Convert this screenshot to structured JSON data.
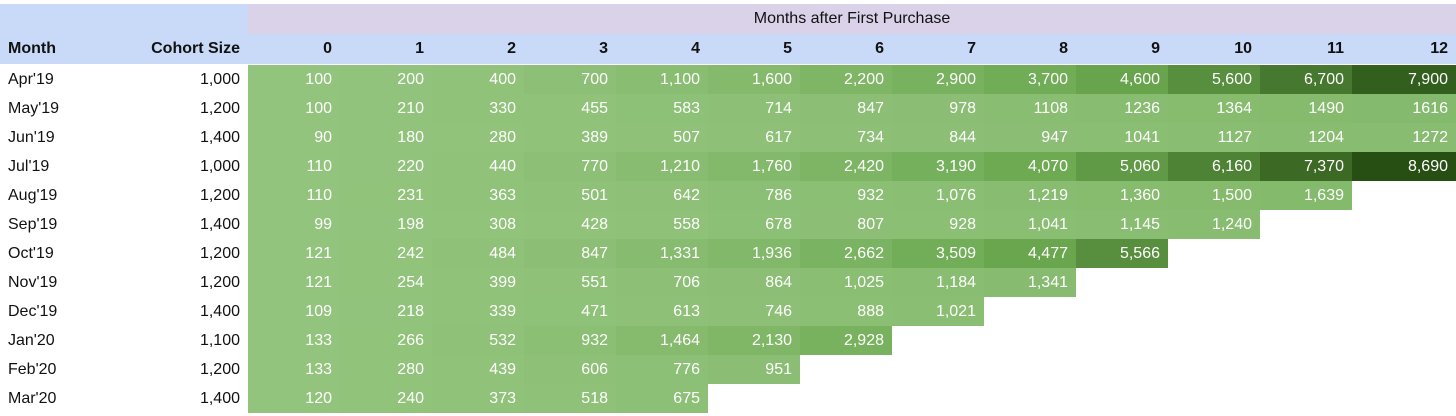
{
  "chart_data": {
    "type": "heatmap",
    "title": "Months after First Purchase",
    "row_header": "Month",
    "size_header": "Cohort Size",
    "columns": [
      "0",
      "1",
      "2",
      "3",
      "4",
      "5",
      "6",
      "7",
      "8",
      "9",
      "10",
      "11",
      "12"
    ],
    "colors": {
      "low": "#93c47d",
      "mid": "#6aa84f",
      "high": "#274e13",
      "header_blue": "#c9daf8",
      "header_purple": "#d9d2e9"
    },
    "rows": [
      {
        "month": "Apr'19",
        "size": "1,000",
        "values": [
          "100",
          "200",
          "400",
          "700",
          "1,100",
          "1,600",
          "2,200",
          "2,900",
          "3,700",
          "4,600",
          "5,600",
          "6,700",
          "7,900"
        ],
        "nums": [
          100,
          200,
          400,
          700,
          1100,
          1600,
          2200,
          2900,
          3700,
          4600,
          5600,
          6700,
          7900
        ]
      },
      {
        "month": "May'19",
        "size": "1,200",
        "values": [
          "100",
          "210",
          "330",
          "455",
          "583",
          "714",
          "847",
          "978",
          "1108",
          "1236",
          "1364",
          "1490",
          "1616"
        ],
        "nums": [
          100,
          210,
          330,
          455,
          583,
          714,
          847,
          978,
          1108,
          1236,
          1364,
          1490,
          1616
        ]
      },
      {
        "month": "Jun'19",
        "size": "1,400",
        "values": [
          "90",
          "180",
          "280",
          "389",
          "507",
          "617",
          "734",
          "844",
          "947",
          "1041",
          "1127",
          "1204",
          "1272"
        ],
        "nums": [
          90,
          180,
          280,
          389,
          507,
          617,
          734,
          844,
          947,
          1041,
          1127,
          1204,
          1272
        ]
      },
      {
        "month": "Jul'19",
        "size": "1,000",
        "values": [
          "110",
          "220",
          "440",
          "770",
          "1,210",
          "1,760",
          "2,420",
          "3,190",
          "4,070",
          "5,060",
          "6,160",
          "7,370",
          "8,690"
        ],
        "nums": [
          110,
          220,
          440,
          770,
          1210,
          1760,
          2420,
          3190,
          4070,
          5060,
          6160,
          7370,
          8690
        ]
      },
      {
        "month": "Aug'19",
        "size": "1,200",
        "values": [
          "110",
          "231",
          "363",
          "501",
          "642",
          "786",
          "932",
          "1,076",
          "1,219",
          "1,360",
          "1,500",
          "1,639"
        ],
        "nums": [
          110,
          231,
          363,
          501,
          642,
          786,
          932,
          1076,
          1219,
          1360,
          1500,
          1639
        ]
      },
      {
        "month": "Sep'19",
        "size": "1,400",
        "values": [
          "99",
          "198",
          "308",
          "428",
          "558",
          "678",
          "807",
          "928",
          "1,041",
          "1,145",
          "1,240"
        ],
        "nums": [
          99,
          198,
          308,
          428,
          558,
          678,
          807,
          928,
          1041,
          1145,
          1240
        ]
      },
      {
        "month": "Oct'19",
        "size": "1,200",
        "values": [
          "121",
          "242",
          "484",
          "847",
          "1,331",
          "1,936",
          "2,662",
          "3,509",
          "4,477",
          "5,566"
        ],
        "nums": [
          121,
          242,
          484,
          847,
          1331,
          1936,
          2662,
          3509,
          4477,
          5566
        ]
      },
      {
        "month": "Nov'19",
        "size": "1,200",
        "values": [
          "121",
          "254",
          "399",
          "551",
          "706",
          "864",
          "1,025",
          "1,184",
          "1,341"
        ],
        "nums": [
          121,
          254,
          399,
          551,
          706,
          864,
          1025,
          1184,
          1341
        ]
      },
      {
        "month": "Dec'19",
        "size": "1,400",
        "values": [
          "109",
          "218",
          "339",
          "471",
          "613",
          "746",
          "888",
          "1,021"
        ],
        "nums": [
          109,
          218,
          339,
          471,
          613,
          746,
          888,
          1021
        ]
      },
      {
        "month": "Jan'20",
        "size": "1,100",
        "values": [
          "133",
          "266",
          "532",
          "932",
          "1,464",
          "2,130",
          "2,928"
        ],
        "nums": [
          133,
          266,
          532,
          932,
          1464,
          2130,
          2928
        ]
      },
      {
        "month": "Feb'20",
        "size": "1,200",
        "values": [
          "133",
          "280",
          "439",
          "606",
          "776",
          "951"
        ],
        "nums": [
          133,
          280,
          439,
          606,
          776,
          951
        ]
      },
      {
        "month": "Mar'20",
        "size": "1,400",
        "values": [
          "120",
          "240",
          "373",
          "518",
          "675"
        ],
        "nums": [
          120,
          240,
          373,
          518,
          675
        ]
      }
    ]
  }
}
